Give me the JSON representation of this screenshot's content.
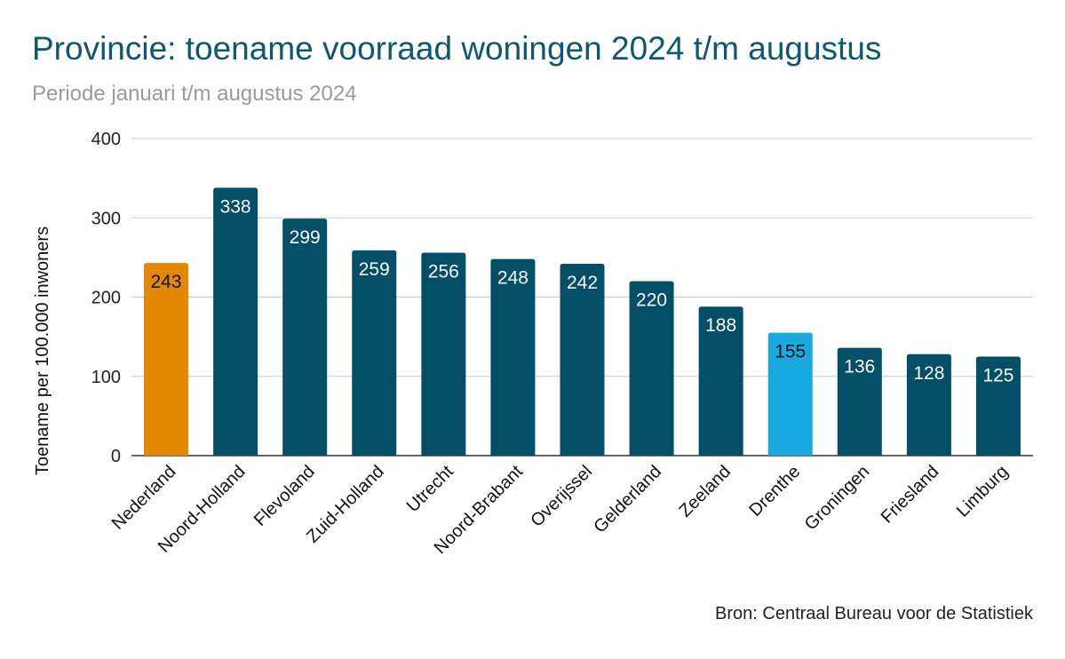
{
  "chart_data": {
    "type": "bar",
    "title": "Provincie: toename voorraad woningen 2024 t/m augustus",
    "subtitle": "Periode januari t/m augustus 2024",
    "ylabel": "Toename per 100.000 inwoners",
    "xlabel": "",
    "source": "Bron: Centraal Bureau voor de Statistiek",
    "ylim": [
      0,
      400
    ],
    "yticks": [
      0,
      100,
      200,
      300,
      400
    ],
    "grid": true,
    "categories": [
      "Nederland",
      "Noord-Holland",
      "Flevoland",
      "Zuid-Holland",
      "Utrecht",
      "Noord-Brabant",
      "Overijssel",
      "Gelderland",
      "Zeeland",
      "Drenthe",
      "Groningen",
      "Friesland",
      "Limburg"
    ],
    "values": [
      243,
      338,
      299,
      259,
      256,
      248,
      242,
      220,
      188,
      155,
      136,
      128,
      125
    ],
    "colors": [
      "#e38800",
      "#024f67",
      "#024f67",
      "#024f67",
      "#024f67",
      "#024f67",
      "#024f67",
      "#024f67",
      "#024f67",
      "#17a9e0",
      "#024f67",
      "#024f67",
      "#024f67"
    ],
    "label_colors": [
      "#111111",
      "#ffffff",
      "#ffffff",
      "#ffffff",
      "#ffffff",
      "#ffffff",
      "#ffffff",
      "#ffffff",
      "#ffffff",
      "#111111",
      "#ffffff",
      "#ffffff",
      "#ffffff"
    ]
  }
}
